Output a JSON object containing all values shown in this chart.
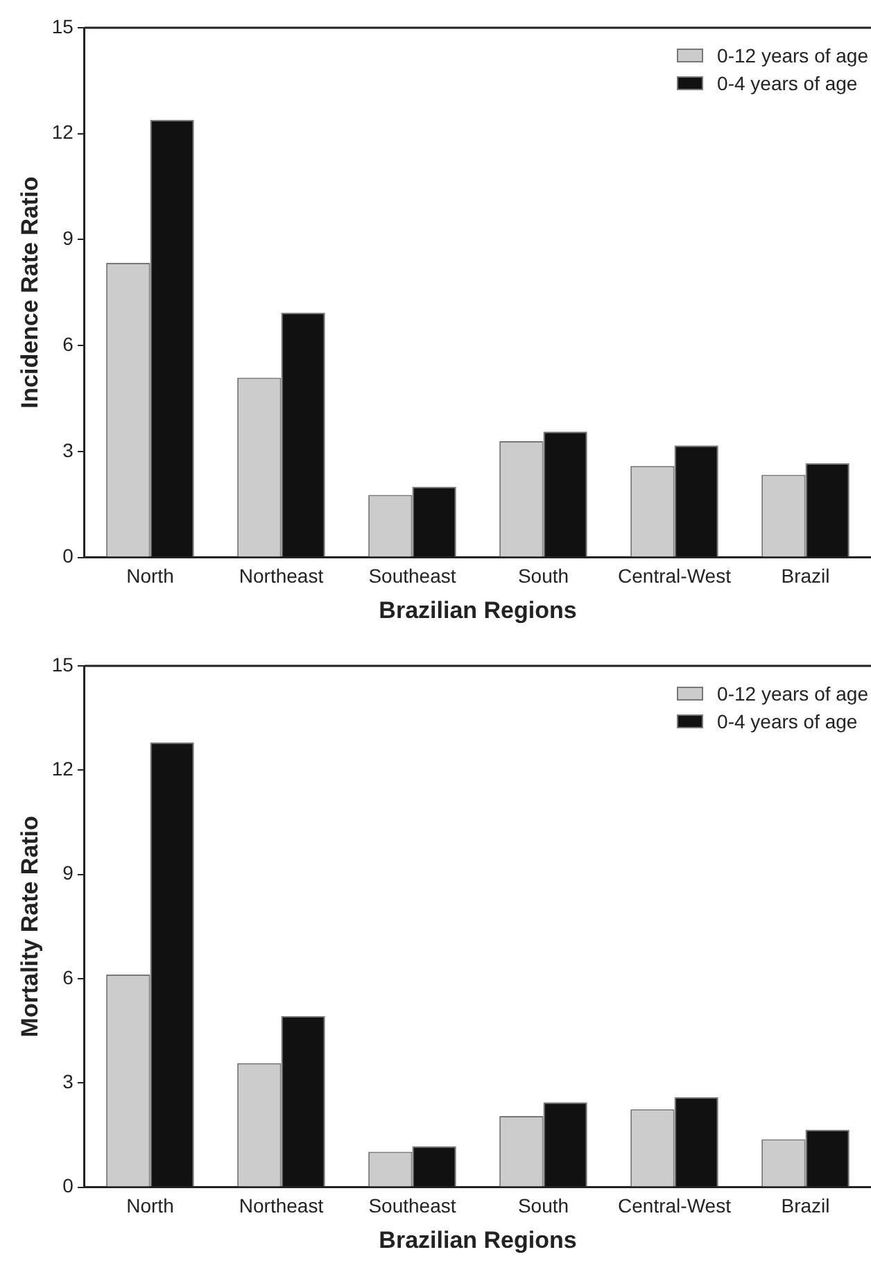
{
  "chart_data": [
    {
      "type": "bar",
      "xlabel": "Brazilian Regions",
      "ylabel": "Incidence Rate Ratio",
      "categories": [
        "North",
        "Northeast",
        "Southeast",
        "South",
        "Central-West",
        "Brazil"
      ],
      "series": [
        {
          "name": "0-12 years of age",
          "color": "#cccccc",
          "values": [
            8.34,
            5.09,
            1.77,
            3.29,
            2.59,
            2.34
          ]
        },
        {
          "name": "0-4 years of age",
          "color": "#111111",
          "values": [
            12.39,
            6.93,
            2.0,
            3.56,
            3.17,
            2.67
          ]
        }
      ],
      "ylim": [
        0,
        15
      ],
      "yticks": [
        0,
        3,
        6,
        9,
        12,
        15
      ],
      "grid": false,
      "legend": "top right"
    },
    {
      "type": "bar",
      "xlabel": "Brazilian Regions",
      "ylabel": "Mortality Rate Ratio",
      "categories": [
        "North",
        "Northeast",
        "Southeast",
        "South",
        "Central-West",
        "Brazil"
      ],
      "series": [
        {
          "name": "0-12 years of age",
          "color": "#cccccc",
          "values": [
            6.12,
            3.57,
            1.02,
            2.05,
            2.24,
            1.38
          ]
        },
        {
          "name": "0-4 years of age",
          "color": "#111111",
          "values": [
            12.8,
            4.92,
            1.18,
            2.44,
            2.59,
            1.65
          ]
        }
      ],
      "ylim": [
        0,
        15
      ],
      "yticks": [
        0,
        3,
        6,
        9,
        12,
        15
      ],
      "grid": false,
      "legend": "top right"
    }
  ]
}
